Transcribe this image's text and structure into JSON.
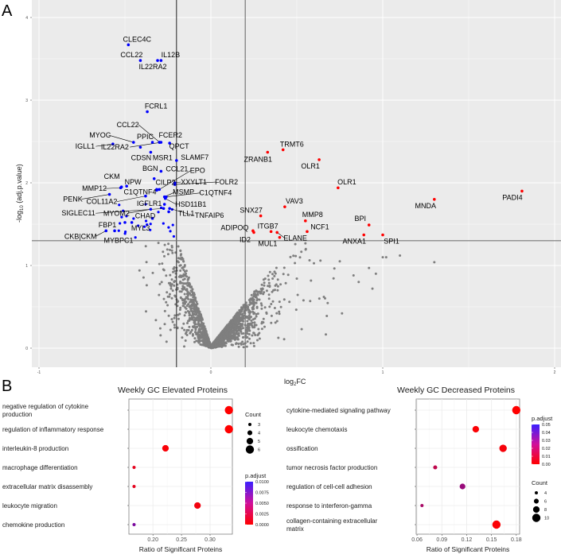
{
  "panel_a_label": "A",
  "panel_b_label": "B",
  "chart_data": [
    {
      "type": "scatter",
      "name": "volcano",
      "xlabel_main": "log",
      "xlabel_sub": "2",
      "xlabel_tail": "FC",
      "ylabel_pre": "-log",
      "ylabel_sub": "10",
      "ylabel_tail": " (adj.p.value)",
      "xlim": [
        -1.1,
        2.05
      ],
      "ylim": [
        -0.2,
        4.2
      ],
      "xticks": [
        "-1",
        "0",
        "1",
        "2"
      ],
      "xtick_values": [
        -1,
        0,
        1,
        2
      ],
      "yticks": [
        "0",
        "1",
        "2",
        "3",
        "4"
      ],
      "ytick_values": [
        0,
        1,
        2,
        3,
        4
      ],
      "vlines": [
        -0.2,
        0.2
      ],
      "hline": 1.3,
      "colors": {
        "down": "#0000ff",
        "up": "#ff0000",
        "ns": "#7f7f7f"
      },
      "labeled_points": [
        {
          "label": "CLEC4C",
          "x": -0.48,
          "y": 3.67,
          "dir": "down"
        },
        {
          "label": "CCL22",
          "x": -0.41,
          "y": 3.48,
          "dir": "down"
        },
        {
          "label": "IL22RA2",
          "x": -0.31,
          "y": 3.48,
          "dir": "down"
        },
        {
          "label": "IL12B",
          "x": -0.29,
          "y": 3.48,
          "dir": "down"
        },
        {
          "label": "FCRL1",
          "x": -0.37,
          "y": 2.86,
          "dir": "down"
        },
        {
          "label": "CCL22",
          "x": -0.298,
          "y": 2.49,
          "dir": "down"
        },
        {
          "label": "MYOC",
          "x": -0.45,
          "y": 2.49,
          "dir": "down"
        },
        {
          "label": "PPIC",
          "x": -0.34,
          "y": 2.49,
          "dir": "down"
        },
        {
          "label": "FCER2",
          "x": -0.3,
          "y": 2.49,
          "dir": "down"
        },
        {
          "label": "QPCT",
          "x": -0.24,
          "y": 2.48,
          "dir": "down"
        },
        {
          "label": "IGLL1",
          "x": -0.57,
          "y": 2.47,
          "dir": "down"
        },
        {
          "label": "IL22RA2",
          "x": -0.29,
          "y": 2.49,
          "dir": "down"
        },
        {
          "label": "CDSN",
          "x": -0.41,
          "y": 2.43,
          "dir": "down"
        },
        {
          "label": "MSR1",
          "x": -0.35,
          "y": 2.37,
          "dir": "down"
        },
        {
          "label": "SLAMF7",
          "x": -0.2,
          "y": 2.27,
          "dir": "down"
        },
        {
          "label": "BGN",
          "x": -0.33,
          "y": 2.05,
          "dir": "down"
        },
        {
          "label": "CCL21",
          "x": -0.29,
          "y": 2.14,
          "dir": "down"
        },
        {
          "label": "CILP2",
          "x": -0.315,
          "y": 1.92,
          "dir": "down"
        },
        {
          "label": "EPO",
          "x": -0.3,
          "y": 1.92,
          "dir": "down"
        },
        {
          "label": "XXYLT1",
          "x": -0.21,
          "y": 2.0,
          "dir": "down"
        },
        {
          "label": "FOLR2",
          "x": -0.21,
          "y": 1.98,
          "dir": "down"
        },
        {
          "label": "CKM",
          "x": -0.52,
          "y": 1.95,
          "dir": "down"
        },
        {
          "label": "NPW",
          "x": -0.49,
          "y": 1.96,
          "dir": "down"
        },
        {
          "label": "MMP12",
          "x": -0.525,
          "y": 1.94,
          "dir": "down"
        },
        {
          "label": "C1QTNF4",
          "x": -0.315,
          "y": 1.91,
          "dir": "down"
        },
        {
          "label": "MSMP",
          "x": -0.27,
          "y": 1.83,
          "dir": "down"
        },
        {
          "label": "C1QTNF4",
          "x": -0.26,
          "y": 1.83,
          "dir": "down"
        },
        {
          "label": "PENK",
          "x": -0.59,
          "y": 1.86,
          "dir": "down"
        },
        {
          "label": "COL11A2",
          "x": -0.38,
          "y": 1.84,
          "dir": "down"
        },
        {
          "label": "IGFLR1",
          "x": -0.27,
          "y": 1.74,
          "dir": "down"
        },
        {
          "label": "HSD11B1",
          "x": -0.265,
          "y": 1.81,
          "dir": "down"
        },
        {
          "label": "SIGLEC11",
          "x": -0.275,
          "y": 1.69,
          "dir": "down"
        },
        {
          "label": "MYOM2",
          "x": -0.35,
          "y": 1.68,
          "dir": "down"
        },
        {
          "label": "CHAD",
          "x": -0.34,
          "y": 1.57,
          "dir": "down"
        },
        {
          "label": "TLL1",
          "x": -0.245,
          "y": 1.65,
          "dir": "down"
        },
        {
          "label": "TNFAIP6",
          "x": -0.24,
          "y": 1.69,
          "dir": "down"
        },
        {
          "label": "FBP1",
          "x": -0.5,
          "y": 1.52,
          "dir": "down"
        },
        {
          "label": "MYL3",
          "x": -0.46,
          "y": 1.52,
          "dir": "down"
        },
        {
          "label": "CKB|CKM",
          "x": -0.61,
          "y": 1.42,
          "dir": "down"
        },
        {
          "label": "MYBPC1",
          "x": -0.56,
          "y": 1.42,
          "dir": "down"
        },
        {
          "label": "TRMT6",
          "x": 0.42,
          "y": 2.4,
          "dir": "up"
        },
        {
          "label": "ZRANB1",
          "x": 0.33,
          "y": 2.37,
          "dir": "up"
        },
        {
          "label": "OLR1",
          "x": 0.63,
          "y": 2.28,
          "dir": "up"
        },
        {
          "label": "OLR1",
          "x": 0.74,
          "y": 1.94,
          "dir": "up"
        },
        {
          "label": "PADI4",
          "x": 1.81,
          "y": 1.9,
          "dir": "up"
        },
        {
          "label": "MNDA",
          "x": 1.3,
          "y": 1.8,
          "dir": "up"
        },
        {
          "label": "VAV3",
          "x": 0.43,
          "y": 1.71,
          "dir": "up"
        },
        {
          "label": "SNX27",
          "x": 0.29,
          "y": 1.6,
          "dir": "up"
        },
        {
          "label": "MMP8",
          "x": 0.55,
          "y": 1.54,
          "dir": "up"
        },
        {
          "label": "NCF1",
          "x": 0.56,
          "y": 1.41,
          "dir": "up"
        },
        {
          "label": "BPI",
          "x": 0.92,
          "y": 1.49,
          "dir": "up"
        },
        {
          "label": "ITGB7",
          "x": 0.35,
          "y": 1.41,
          "dir": "up"
        },
        {
          "label": "ADIPOQ",
          "x": 0.245,
          "y": 1.42,
          "dir": "up"
        },
        {
          "label": "ID2",
          "x": 0.25,
          "y": 1.4,
          "dir": "up"
        },
        {
          "label": "ELANE",
          "x": 0.385,
          "y": 1.4,
          "dir": "up"
        },
        {
          "label": "MUL1",
          "x": 0.4,
          "y": 1.34,
          "dir": "up"
        },
        {
          "label": "ANXA1",
          "x": 0.89,
          "y": 1.37,
          "dir": "up"
        },
        {
          "label": "SPI1",
          "x": 1.0,
          "y": 1.37,
          "dir": "up"
        }
      ]
    },
    {
      "type": "scatter",
      "name": "go-elevated",
      "title": "Weekly GC Elevated Proteins",
      "xlabel": "Ratio of Significant Proteins",
      "xlim": [
        0.158,
        0.339
      ],
      "xticks": [
        "0.20",
        "0.25",
        "0.30"
      ],
      "xtick_values": [
        0.2,
        0.25,
        0.3
      ],
      "terms": [
        {
          "line1": "negative regulation of cytokine",
          "line2": "production",
          "ratio": 0.333,
          "count": 6,
          "p_adjust": 0.0
        },
        {
          "line1": "regulation of inflammatory response",
          "line2": "",
          "ratio": 0.333,
          "count": 6,
          "p_adjust": 0.0
        },
        {
          "line1": "interleukin-8 production",
          "line2": "",
          "ratio": 0.222,
          "count": 5,
          "p_adjust": 0.0003
        },
        {
          "line1": "macrophage differentiation",
          "line2": "",
          "ratio": 0.167,
          "count": 3,
          "p_adjust": 0.0012
        },
        {
          "line1": "extracellular matrix disassembly",
          "line2": "",
          "ratio": 0.167,
          "count": 3,
          "p_adjust": 0.0012
        },
        {
          "line1": "leukocyte migration",
          "line2": "",
          "ratio": 0.278,
          "count": 5,
          "p_adjust": 0.0006
        },
        {
          "line1": "chemokine production",
          "line2": "",
          "ratio": 0.167,
          "count": 3,
          "p_adjust": 0.0062
        }
      ],
      "count_legend": {
        "title": "Count",
        "values": [
          3,
          4,
          5,
          6
        ],
        "labels": [
          "3",
          "4",
          "5",
          "6"
        ]
      },
      "color_legend": {
        "title": "p.adjust",
        "min": 0,
        "max": 0.01,
        "labels": [
          "0.0100",
          "0.0075",
          "0.0050",
          "0.0025",
          "0.0000"
        ]
      }
    },
    {
      "type": "scatter",
      "name": "go-decreased",
      "title": "Weekly GC Decreased Proteins",
      "xlabel": "Ratio of Significant Proteins",
      "xlim": [
        0.059,
        0.184
      ],
      "xticks": [
        "0.06",
        "0.09",
        "0.12",
        "0.15",
        "0.18"
      ],
      "xtick_values": [
        0.06,
        0.09,
        0.12,
        0.15,
        0.18
      ],
      "terms": [
        {
          "line1": "cytokine-mediated signaling pathway",
          "line2": "",
          "ratio": 0.18,
          "count": 10,
          "p_adjust": 0.0
        },
        {
          "line1": "leukocyte chemotaxis",
          "line2": "",
          "ratio": 0.131,
          "count": 8,
          "p_adjust": 0.001
        },
        {
          "line1": "ossification",
          "line2": "",
          "ratio": 0.164,
          "count": 9,
          "p_adjust": 0.002
        },
        {
          "line1": "tumor necrosis factor production",
          "line2": "",
          "ratio": 0.082,
          "count": 5,
          "p_adjust": 0.015
        },
        {
          "line1": "regulation of cell-cell adhesion",
          "line2": "",
          "ratio": 0.115,
          "count": 7,
          "p_adjust": 0.024
        },
        {
          "line1": "response to interferon-gamma",
          "line2": "",
          "ratio": 0.066,
          "count": 4,
          "p_adjust": 0.02
        },
        {
          "line1": "collagen-containing extracellular",
          "line2": "matrix",
          "ratio": 0.156,
          "count": 10,
          "p_adjust": 0.001
        }
      ],
      "count_legend": {
        "title": "Count",
        "values": [
          4,
          6,
          8,
          10
        ],
        "labels": [
          "4",
          "6",
          "8",
          "10"
        ]
      },
      "color_legend": {
        "title": "p.adjust",
        "min": 0,
        "max": 0.05,
        "labels": [
          "0.05",
          "0.04",
          "0.03",
          "0.02",
          "0.01",
          "0.00"
        ]
      }
    }
  ]
}
